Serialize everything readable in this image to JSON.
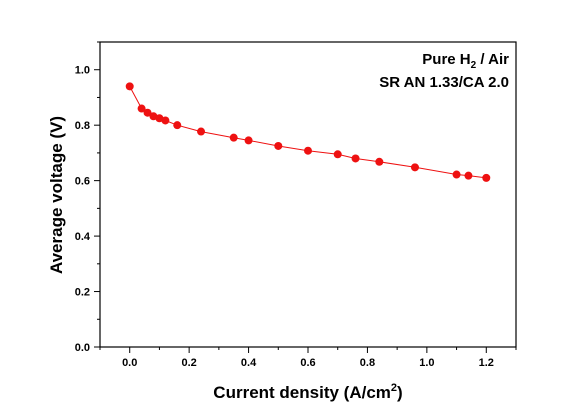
{
  "chart_data": {
    "type": "line",
    "xlabel": {
      "main": "Current density (A/cm",
      "sup": "2",
      "end": ")"
    },
    "ylabel": "Average voltage (V)",
    "annotations": {
      "line1": {
        "a": "Pure H",
        "sub": "2",
        "b": " / Air"
      },
      "line2": "SR AN 1.33/CA 2.0"
    },
    "xlim": [
      -0.1,
      1.3
    ],
    "ylim": [
      0.0,
      1.1
    ],
    "xticks": [
      0.0,
      0.2,
      0.4,
      0.6,
      0.8,
      1.0,
      1.2
    ],
    "xtick_labels": [
      "0.0",
      "0.2",
      "0.4",
      "0.6",
      "0.8",
      "1.0",
      "1.2"
    ],
    "yticks": [
      0.0,
      0.2,
      0.4,
      0.6,
      0.8,
      1.0
    ],
    "ytick_labels": [
      "0.0",
      "0.2",
      "0.4",
      "0.6",
      "0.8",
      "1.0"
    ],
    "marker_color": "#ee1111",
    "series": [
      {
        "x": [
          0.0,
          0.04,
          0.06,
          0.08,
          0.1,
          0.12,
          0.16,
          0.24,
          0.35,
          0.4,
          0.5,
          0.6,
          0.7,
          0.76,
          0.84,
          0.96,
          1.1,
          1.14,
          1.2
        ],
        "y": [
          0.94,
          0.86,
          0.845,
          0.832,
          0.825,
          0.817,
          0.8,
          0.777,
          0.755,
          0.745,
          0.725,
          0.708,
          0.695,
          0.68,
          0.668,
          0.648,
          0.622,
          0.618,
          0.61
        ]
      }
    ]
  }
}
